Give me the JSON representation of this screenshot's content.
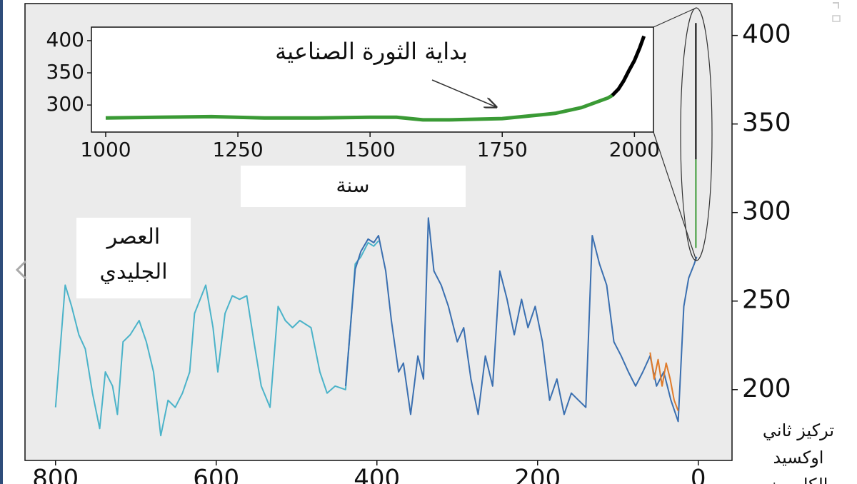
{
  "chart_data": [
    {
      "type": "line",
      "xlim": [
        838,
        -42
      ],
      "xticks": [
        800,
        600,
        400,
        200,
        0
      ],
      "ylim": [
        160,
        418
      ],
      "yticks": [
        200,
        250,
        300,
        350,
        400
      ],
      "ylabel": [
        "تركيز ثاني",
        "اوكسيد",
        "الكاربون"
      ],
      "annotation": [
        "العصر",
        "الجليدي"
      ],
      "series": [
        {
          "color": "#4bb3c9",
          "x": [
            800,
            788,
            780,
            771,
            763,
            754,
            745,
            738,
            729,
            723,
            716,
            707,
            696,
            687,
            678,
            669,
            660,
            651,
            642,
            633,
            627,
            613,
            604,
            598,
            589,
            580,
            571,
            562,
            553,
            544,
            533,
            523,
            514,
            505,
            496,
            482,
            471,
            462,
            452,
            439,
            427,
            420,
            411,
            404,
            398
          ],
          "values": [
            190,
            259,
            247,
            231,
            223,
            198,
            178,
            210,
            202,
            186,
            227,
            231,
            239,
            227,
            210,
            174,
            194,
            190,
            198,
            210,
            243,
            259,
            235,
            210,
            243,
            253,
            251,
            253,
            227,
            202,
            190,
            247,
            239,
            235,
            239,
            235,
            210,
            198,
            202,
            200,
            271,
            275,
            283,
            281,
            284
          ]
        },
        {
          "color": "#3a6fb0",
          "x": [
            439,
            427,
            420,
            411,
            404,
            398,
            389,
            382,
            373,
            367,
            358,
            349,
            342,
            336,
            329,
            320,
            311,
            300,
            292,
            283,
            274,
            265,
            256,
            247,
            238,
            229,
            220,
            212,
            203,
            194,
            185,
            176,
            167,
            158,
            149,
            140,
            132,
            123,
            114,
            105,
            96,
            87,
            78,
            69,
            60,
            52,
            43,
            34,
            25,
            18,
            12,
            5,
            2
          ],
          "values": [
            202,
            268,
            278,
            285,
            283,
            287,
            267,
            239,
            210,
            215,
            186,
            219,
            206,
            297,
            267,
            259,
            247,
            227,
            235,
            206,
            186,
            219,
            202,
            267,
            251,
            231,
            251,
            235,
            247,
            227,
            194,
            206,
            186,
            198,
            194,
            190,
            287,
            271,
            259,
            227,
            219,
            210,
            202,
            210,
            219,
            202,
            210,
            194,
            182,
            247,
            263,
            271,
            275
          ]
        },
        {
          "color": "#e07b2a",
          "x": [
            60,
            55,
            50,
            45,
            40,
            35,
            30,
            25
          ],
          "values": [
            221,
            206,
            217,
            202,
            215,
            206,
            194,
            188
          ]
        },
        {
          "color": "#3a9a35",
          "x": [
            3,
            3
          ],
          "values": [
            280,
            330
          ]
        },
        {
          "color": "#000000",
          "x": [
            3,
            3
          ],
          "values": [
            330,
            407
          ]
        }
      ]
    },
    {
      "type": "line",
      "xlim": [
        973,
        2036
      ],
      "xticks": [
        1000,
        1250,
        1500,
        1750,
        2000
      ],
      "ylim": [
        258,
        421
      ],
      "yticks": [
        300,
        350,
        400
      ],
      "xlabel": "سنة",
      "annotation": "بداية الثورة الصناعية",
      "series": [
        {
          "color": "#3a9a35",
          "x": [
            1000,
            1100,
            1200,
            1300,
            1400,
            1500,
            1550,
            1600,
            1650,
            1700,
            1750,
            1800,
            1850,
            1900,
            1950,
            1960
          ],
          "values": [
            280,
            281,
            282,
            280,
            280,
            281,
            281,
            277,
            277,
            278,
            279,
            283,
            287,
            296,
            311,
            316
          ]
        },
        {
          "color": "#000000",
          "x": [
            1958,
            1970,
            1980,
            1990,
            2000,
            2010,
            2018
          ],
          "values": [
            315,
            325,
            338,
            354,
            369,
            389,
            407
          ]
        }
      ]
    }
  ]
}
